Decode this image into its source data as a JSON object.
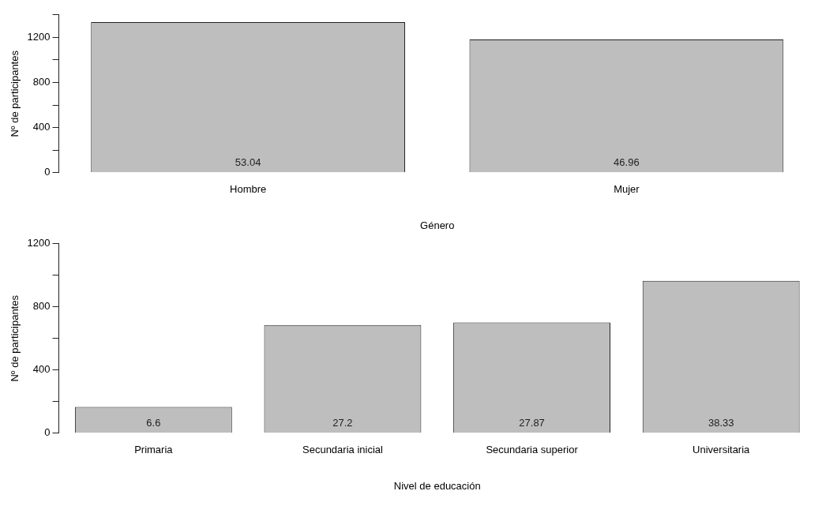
{
  "chart_data": [
    {
      "type": "bar",
      "xlabel": "Género",
      "ylabel": "Nº de participantes",
      "categories": [
        "Hombre",
        "Mujer"
      ],
      "values": [
        1336,
        1182
      ],
      "color": "#bebebe",
      "annotations": [
        "53.04",
        "46.96"
      ],
      "ylim": [
        0,
        1400
      ],
      "yticks": [
        0,
        {
          "value": 200,
          "label": null
        },
        400,
        {
          "value": 600,
          "label": null
        },
        800,
        {
          "value": 1000,
          "label": null
        },
        1200,
        {
          "value": 1400,
          "label": null
        }
      ],
      "grid": false,
      "legend": false
    },
    {
      "type": "bar",
      "xlabel": "Nivel de educación",
      "ylabel": "Nº de participantes",
      "categories": [
        "Primaria",
        "Secundaria inicial",
        "Secundaria superior",
        "Universitaria"
      ],
      "values": [
        166,
        685,
        702,
        965
      ],
      "color": "#bebebe",
      "annotations": [
        "6.6",
        "27.2",
        "27.87",
        "38.33"
      ],
      "ylim": [
        0,
        1200
      ],
      "yticks": [
        0,
        {
          "value": 200,
          "label": null
        },
        400,
        {
          "value": 600,
          "label": null
        },
        800,
        {
          "value": 1000,
          "label": null
        },
        1200
      ],
      "grid": false,
      "legend": false
    }
  ]
}
